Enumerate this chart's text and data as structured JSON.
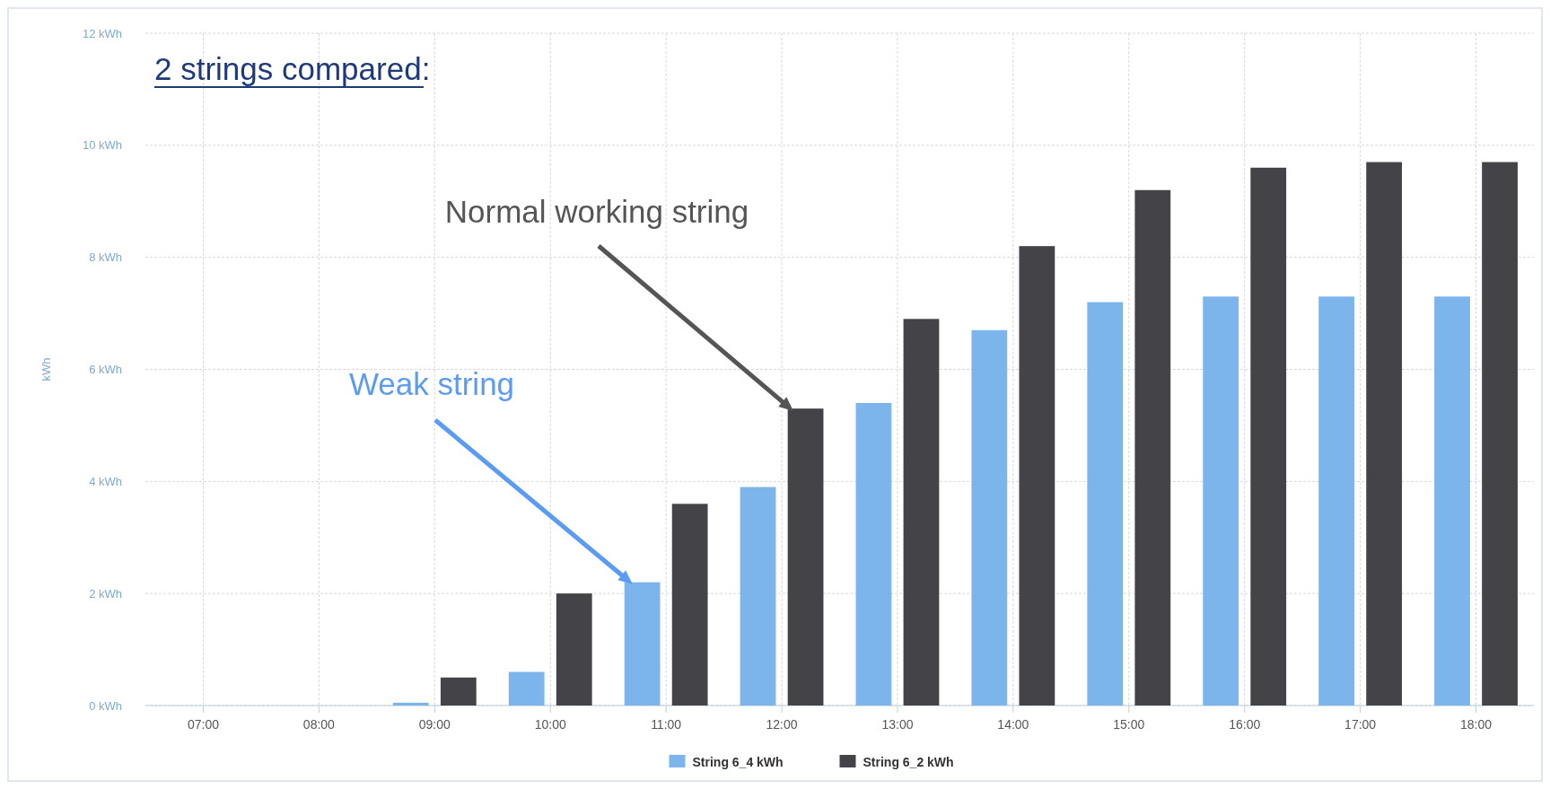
{
  "chart_data": {
    "type": "bar",
    "title": "2 strings compared:",
    "ylabel": "kWh",
    "categories": [
      "07:00",
      "08:00",
      "09:00",
      "10:00",
      "11:00",
      "12:00",
      "13:00",
      "14:00",
      "15:00",
      "16:00",
      "17:00",
      "18:00"
    ],
    "series": [
      {
        "name": "String 6_4 kWh",
        "color": "#7cb5ec",
        "values": [
          0,
          0,
          0.05,
          0.6,
          2.2,
          3.9,
          5.4,
          6.7,
          7.2,
          7.3,
          7.3,
          7.3
        ]
      },
      {
        "name": "String 6_2 kWh",
        "color": "#434348",
        "values": [
          0,
          0,
          0.5,
          2.0,
          3.6,
          5.3,
          6.9,
          8.2,
          9.2,
          9.6,
          9.7,
          9.7
        ]
      }
    ],
    "ylim": [
      0,
      12
    ],
    "yticks": [
      {
        "value": 0,
        "label": "0 kWh"
      },
      {
        "value": 2,
        "label": "2 kWh"
      },
      {
        "value": 4,
        "label": "4 kWh"
      },
      {
        "value": 6,
        "label": "6 kWh"
      },
      {
        "value": 8,
        "label": "8 kWh"
      },
      {
        "value": 10,
        "label": "10 kWh"
      },
      {
        "value": 12,
        "label": "12 kWh"
      }
    ],
    "grid": true,
    "legend": "bottom",
    "annotations": [
      "Weak string",
      "Normal working string"
    ]
  }
}
